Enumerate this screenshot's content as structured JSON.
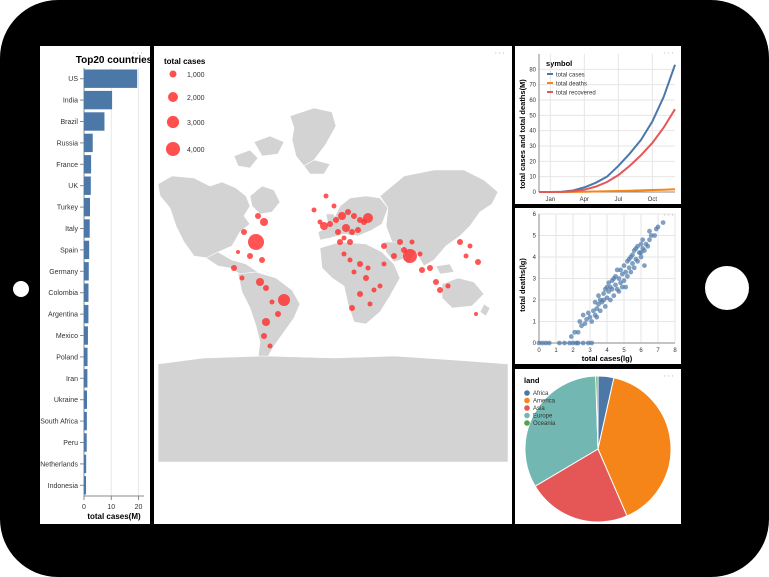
{
  "colors": {
    "frame": "#000000",
    "panel": "#ffffff",
    "bar": "#4c78a8",
    "bubble": "#ff3030",
    "land": "#d3d3d3",
    "grid": "#e6e6e6",
    "axis": "#888888"
  },
  "icons": {
    "more": "ellipsis-icon",
    "camera": "camera-icon"
  },
  "chart_data": [
    {
      "type": "bar",
      "title": "Top20 countries",
      "xlabel": "total cases(M)",
      "xlim": [
        0,
        22
      ],
      "xticks": [
        0,
        10,
        20
      ],
      "categories": [
        "US",
        "India",
        "Brazil",
        "Russia",
        "France",
        "UK",
        "Turkey",
        "Italy",
        "Spain",
        "Germany",
        "Colombia",
        "Argentina",
        "Mexico",
        "Poland",
        "Iran",
        "Ukraine",
        "South Africa",
        "Peru",
        "Netherlands",
        "Indonesia"
      ],
      "values": [
        19.5,
        10.3,
        7.5,
        3.2,
        2.6,
        2.5,
        2.2,
        2.1,
        1.9,
        1.75,
        1.65,
        1.62,
        1.45,
        1.3,
        1.25,
        1.1,
        1.05,
        1.0,
        0.8,
        0.75
      ]
    },
    {
      "type": "scatter",
      "subtype": "bubble-map",
      "legend_title": "total cases",
      "legend_labels": [
        "1,000",
        "2,000",
        "3,000",
        "4,000"
      ],
      "legend_values": [
        1000,
        2000,
        3000,
        4000
      ]
    },
    {
      "type": "line",
      "ylabel": "total cases and total deaths(M)",
      "xticks": [
        "Jan",
        "Apr",
        "Jul",
        "Oct"
      ],
      "ylim": [
        0,
        90
      ],
      "yticks": [
        0,
        10,
        20,
        30,
        40,
        50,
        60,
        70,
        80
      ],
      "legend_title": "symbol",
      "x": [
        0,
        1,
        2,
        3,
        4,
        5,
        6,
        7,
        8,
        9,
        10,
        11,
        12
      ],
      "series": [
        {
          "name": "total cases",
          "color": "#4c78a8",
          "values": [
            0,
            0,
            0.2,
            1,
            3,
            6,
            10,
            17,
            25,
            34,
            46,
            62,
            83
          ]
        },
        {
          "name": "total deaths",
          "color": "#f58518",
          "values": [
            0,
            0,
            0.02,
            0.1,
            0.2,
            0.35,
            0.5,
            0.65,
            0.85,
            1.05,
            1.3,
            1.5,
            1.8
          ]
        },
        {
          "name": "total recovered",
          "color": "#e45756",
          "values": [
            0,
            0,
            0.1,
            0.5,
            1.5,
            3.5,
            6.5,
            11,
            17,
            24,
            32,
            42,
            54
          ]
        }
      ]
    },
    {
      "type": "scatter",
      "xlabel": "total cases(lg)",
      "ylabel": "total deaths(lg)",
      "xlim": [
        0,
        8
      ],
      "ylim": [
        0,
        6
      ],
      "xticks": [
        0,
        1,
        2,
        3,
        4,
        5,
        6,
        7,
        8
      ],
      "yticks": [
        0,
        1,
        2,
        3,
        4,
        5,
        6
      ],
      "points": [
        [
          0,
          0
        ],
        [
          0.2,
          0
        ],
        [
          0.4,
          0
        ],
        [
          0.6,
          0
        ],
        [
          1.2,
          0
        ],
        [
          1.5,
          0
        ],
        [
          1.8,
          0
        ],
        [
          2.0,
          0
        ],
        [
          2.2,
          0
        ],
        [
          2.3,
          0
        ],
        [
          2.6,
          0
        ],
        [
          2.9,
          0
        ],
        [
          3.1,
          0
        ],
        [
          1.9,
          0.3
        ],
        [
          2.1,
          0.5
        ],
        [
          2.3,
          0.5
        ],
        [
          2.5,
          0.8
        ],
        [
          2.4,
          1.0
        ],
        [
          2.7,
          0.9
        ],
        [
          2.8,
          1.1
        ],
        [
          3.0,
          1.2
        ],
        [
          3.1,
          1.0
        ],
        [
          2.9,
          1.4
        ],
        [
          3.2,
          1.5
        ],
        [
          3.3,
          1.3
        ],
        [
          3.4,
          1.6
        ],
        [
          3.5,
          1.8
        ],
        [
          3.6,
          1.5
        ],
        [
          3.7,
          1.9
        ],
        [
          3.8,
          2.0
        ],
        [
          3.9,
          1.7
        ],
        [
          3.5,
          2.2
        ],
        [
          3.6,
          2.0
        ],
        [
          3.8,
          2.3
        ],
        [
          4.0,
          2.1
        ],
        [
          4.1,
          2.4
        ],
        [
          4.2,
          2.0
        ],
        [
          4.0,
          2.6
        ],
        [
          4.3,
          2.5
        ],
        [
          4.4,
          2.2
        ],
        [
          4.5,
          2.7
        ],
        [
          4.3,
          2.9
        ],
        [
          4.6,
          2.5
        ],
        [
          4.7,
          3.0
        ],
        [
          4.8,
          2.8
        ],
        [
          4.5,
          3.1
        ],
        [
          4.9,
          3.2
        ],
        [
          5.0,
          2.9
        ],
        [
          5.1,
          3.3
        ],
        [
          4.8,
          3.4
        ],
        [
          5.2,
          3.1
        ],
        [
          5.3,
          3.5
        ],
        [
          5.0,
          3.6
        ],
        [
          5.4,
          3.3
        ],
        [
          5.5,
          3.7
        ],
        [
          5.3,
          3.9
        ],
        [
          5.6,
          3.5
        ],
        [
          5.7,
          3.9
        ],
        [
          5.5,
          4.1
        ],
        [
          5.8,
          3.8
        ],
        [
          5.9,
          4.2
        ],
        [
          5.7,
          4.4
        ],
        [
          6.0,
          4.0
        ],
        [
          6.1,
          4.4
        ],
        [
          6.0,
          4.6
        ],
        [
          6.2,
          4.3
        ],
        [
          6.3,
          4.6
        ],
        [
          6.1,
          4.8
        ],
        [
          6.4,
          4.5
        ],
        [
          6.5,
          4.8
        ],
        [
          6.6,
          5.0
        ],
        [
          6.5,
          5.2
        ],
        [
          6.8,
          5.0
        ],
        [
          6.9,
          5.3
        ],
        [
          7.0,
          5.4
        ],
        [
          7.3,
          5.6
        ],
        [
          6.2,
          3.6
        ],
        [
          5.1,
          2.6
        ],
        [
          4.6,
          3.4
        ],
        [
          3.3,
          1.9
        ],
        [
          4.1,
          2.8
        ],
        [
          5.6,
          4.3
        ],
        [
          4.4,
          3.0
        ],
        [
          3.9,
          2.5
        ],
        [
          4.9,
          2.6
        ],
        [
          5.4,
          4.0
        ],
        [
          6.0,
          4.2
        ],
        [
          3.4,
          1.2
        ],
        [
          2.6,
          1.3
        ],
        [
          4.2,
          2.6
        ],
        [
          4.7,
          2.4
        ],
        [
          5.2,
          3.8
        ],
        [
          5.8,
          4.5
        ]
      ]
    },
    {
      "type": "pie",
      "legend_title": "land",
      "categories": [
        "Africa",
        "America",
        "Asia",
        "Europe",
        "Oceania"
      ],
      "values": [
        3.5,
        40,
        23,
        33,
        0.5
      ],
      "colors": [
        "#4c78a8",
        "#f58518",
        "#e45756",
        "#72b7b2",
        "#54a24b"
      ]
    }
  ]
}
